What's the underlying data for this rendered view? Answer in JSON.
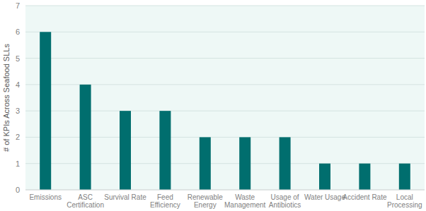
{
  "chart_data": {
    "type": "bar",
    "y_label": "# of KPIs Across Seafood SLLs",
    "categories": [
      "Emissions",
      "ASC Certification",
      "Survival Rate",
      "Feed Efficiency",
      "Renewable Energy",
      "Waste Management",
      "Usage of Antibiotics",
      "Water Usage",
      "Accident Rate",
      "Local Processing"
    ],
    "values": [
      6,
      4,
      3,
      3,
      2,
      2,
      2,
      1,
      1,
      1
    ],
    "color": "#006e6e",
    "ylim": [
      0,
      7
    ],
    "yticks": [
      0,
      1,
      2,
      3,
      4,
      5,
      6,
      7
    ],
    "grid": true
  }
}
